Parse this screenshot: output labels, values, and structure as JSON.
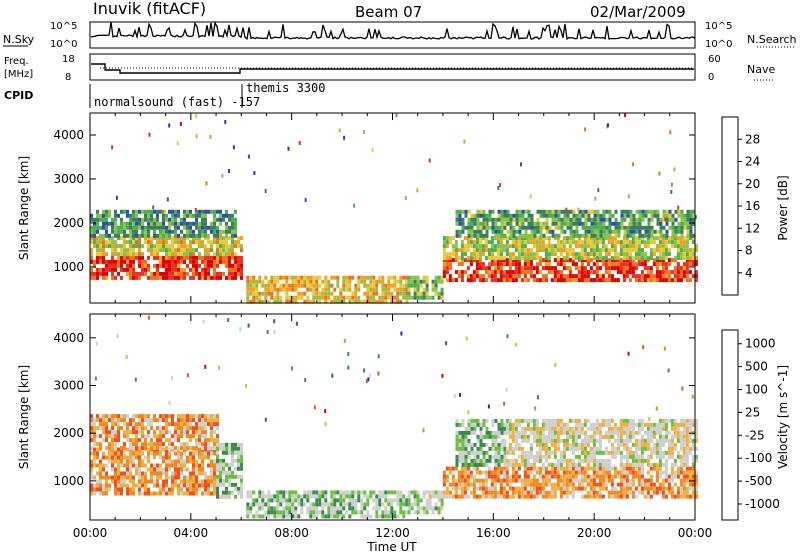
{
  "header": {
    "title_left": "Inuvik (fitACF)",
    "title_center": "Beam 07",
    "title_right": "02/Mar/2009"
  },
  "top_panel": {
    "left_label": "N.Sky",
    "left_ticks": [
      "10^5",
      "10^0"
    ],
    "right_label": "N.Search",
    "right_ticks": [
      "10^5",
      "10^0"
    ]
  },
  "freq_panel": {
    "left_label_1": "Freq.",
    "left_label_2": "[MHz]",
    "left_ticks": [
      "18",
      "8"
    ],
    "right_label": "Nave",
    "right_ticks": [
      "60",
      "0"
    ],
    "cpid_label": "CPID",
    "cpid_1": "normalsound (fast) -157",
    "cpid_2": "themis 3300"
  },
  "colors": {
    "power_scale": [
      "#1f3bd9",
      "#2c4fb0",
      "#3a7f5a",
      "#4caf50",
      "#8bc34a",
      "#e8c93a",
      "#f0a020",
      "#f07020",
      "#e83020",
      "#e00000"
    ],
    "velocity_scale": [
      "#e00000",
      "#f05020",
      "#f08a20",
      "#f0b040",
      "#cfcfcf",
      "#cfcfcf",
      "#6dbf40",
      "#3a8a50",
      "#2a5fa0",
      "#1f2fb0"
    ]
  },
  "chart_data": [
    {
      "type": "heatmap",
      "name": "power",
      "ylabel": "Slant Range [km]",
      "ylim": [
        180,
        4500
      ],
      "yticks": [
        "1000",
        "2000",
        "3000",
        "4000"
      ],
      "colorbar_label": "Power [dB]",
      "colorbar_ticks": [
        "28",
        "24",
        "20",
        "16",
        "12",
        "8",
        "4"
      ],
      "regions": [
        {
          "t": [
            0.0,
            6.0
          ],
          "r": [
            750,
            1250
          ],
          "level": 0.85
        },
        {
          "t": [
            0.0,
            6.0
          ],
          "r": [
            1250,
            1700
          ],
          "level": 0.55
        },
        {
          "t": [
            0.0,
            5.8
          ],
          "r": [
            1700,
            2300
          ],
          "level": 0.3
        },
        {
          "t": [
            6.2,
            12.6
          ],
          "r": [
            250,
            800
          ],
          "level": 0.6
        },
        {
          "t": [
            12.6,
            14.0
          ],
          "r": [
            300,
            800
          ],
          "level": 0.4
        },
        {
          "t": [
            14.0,
            24.0
          ],
          "r": [
            700,
            1200
          ],
          "level": 0.85
        },
        {
          "t": [
            14.0,
            24.0
          ],
          "r": [
            1200,
            1700
          ],
          "level": 0.5
        },
        {
          "t": [
            14.5,
            24.0
          ],
          "r": [
            1700,
            2300
          ],
          "level": 0.35
        }
      ]
    },
    {
      "type": "heatmap",
      "name": "velocity",
      "xlabel": "Time UT",
      "xticks": [
        "00:00",
        "04:00",
        "08:00",
        "12:00",
        "16:00",
        "20:00",
        "00:00"
      ],
      "xlim": [
        0,
        24
      ],
      "ylabel": "Slant Range [km]",
      "ylim": [
        180,
        4500
      ],
      "yticks": [
        "1000",
        "2000",
        "3000",
        "4000"
      ],
      "colorbar_label": "Velocity [m s^-1]",
      "colorbar_ticks": [
        "1000",
        "500",
        "100",
        "25",
        "-25",
        "-100",
        "-500",
        "-1000"
      ],
      "regions": [
        {
          "t": [
            0.0,
            5.0
          ],
          "r": [
            700,
            1700
          ],
          "level": 0.3
        },
        {
          "t": [
            0.0,
            5.0
          ],
          "r": [
            1700,
            2400
          ],
          "level": 0.3
        },
        {
          "t": [
            5.0,
            6.0
          ],
          "r": [
            700,
            1800
          ],
          "level": 0.6
        },
        {
          "t": [
            6.2,
            12.6
          ],
          "r": [
            250,
            800
          ],
          "level": 0.62
        },
        {
          "t": [
            12.6,
            14.0
          ],
          "r": [
            300,
            800
          ],
          "level": 0.55
        },
        {
          "t": [
            14.0,
            24.0
          ],
          "r": [
            700,
            1300
          ],
          "level": 0.3
        },
        {
          "t": [
            14.5,
            16.5
          ],
          "r": [
            1300,
            2300
          ],
          "level": 0.62
        },
        {
          "t": [
            16.5,
            24.0
          ],
          "r": [
            1300,
            2300
          ],
          "level": 0.48
        }
      ]
    }
  ]
}
